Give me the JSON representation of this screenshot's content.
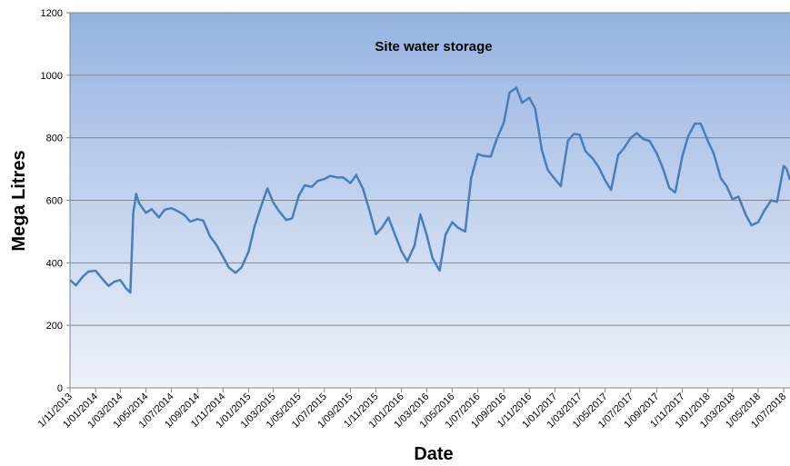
{
  "chart_data": {
    "type": "line",
    "title": "Site water storage",
    "x_label": "Date",
    "y_label": "Mega Litres",
    "color": "#4a7ebb",
    "grid": true,
    "ylim": [
      0,
      1200
    ],
    "yticks": [
      0,
      200,
      400,
      600,
      800,
      1000,
      1200
    ],
    "xlim": [
      "2013-11-01",
      "2018-07-16"
    ],
    "xticks": [
      {
        "value": "2013-11-01",
        "label": "1/11/2013"
      },
      {
        "value": "2014-01-01",
        "label": "1/01/2014"
      },
      {
        "value": "2014-03-01",
        "label": "1/03/2014"
      },
      {
        "value": "2014-05-01",
        "label": "1/05/2014"
      },
      {
        "value": "2014-07-01",
        "label": "1/07/2014"
      },
      {
        "value": "2014-09-01",
        "label": "1/09/2014"
      },
      {
        "value": "2014-11-01",
        "label": "1/11/2014"
      },
      {
        "value": "2015-01-01",
        "label": "1/01/2015"
      },
      {
        "value": "2015-03-01",
        "label": "1/03/2015"
      },
      {
        "value": "2015-05-01",
        "label": "1/05/2015"
      },
      {
        "value": "2015-07-01",
        "label": "1/07/2015"
      },
      {
        "value": "2015-09-01",
        "label": "1/09/2015"
      },
      {
        "value": "2015-11-01",
        "label": "1/11/2015"
      },
      {
        "value": "2016-01-01",
        "label": "1/01/2016"
      },
      {
        "value": "2016-03-01",
        "label": "1/03/2016"
      },
      {
        "value": "2016-05-01",
        "label": "1/05/2016"
      },
      {
        "value": "2016-07-01",
        "label": "1/07/2016"
      },
      {
        "value": "2016-09-01",
        "label": "1/09/2016"
      },
      {
        "value": "2016-11-01",
        "label": "1/11/2016"
      },
      {
        "value": "2017-01-01",
        "label": "1/01/2017"
      },
      {
        "value": "2017-03-01",
        "label": "1/03/2017"
      },
      {
        "value": "2017-05-01",
        "label": "1/05/2017"
      },
      {
        "value": "2017-07-01",
        "label": "1/07/2017"
      },
      {
        "value": "2017-09-01",
        "label": "1/09/2017"
      },
      {
        "value": "2017-11-01",
        "label": "1/11/2017"
      },
      {
        "value": "2018-01-01",
        "label": "1/01/2018"
      },
      {
        "value": "2018-03-01",
        "label": "1/03/2018"
      },
      {
        "value": "2018-05-01",
        "label": "1/05/2018"
      },
      {
        "value": "2018-07-01",
        "label": "1/07/2018"
      }
    ],
    "x": [
      "2013-11-01",
      "2013-11-15",
      "2013-12-01",
      "2013-12-15",
      "2014-01-01",
      "2014-01-15",
      "2014-02-01",
      "2014-02-15",
      "2014-03-01",
      "2014-03-15",
      "2014-03-25",
      "2014-04-01",
      "2014-04-08",
      "2014-04-15",
      "2014-05-01",
      "2014-05-15",
      "2014-06-01",
      "2014-06-15",
      "2014-07-01",
      "2014-07-15",
      "2014-08-01",
      "2014-08-15",
      "2014-09-01",
      "2014-09-15",
      "2014-10-01",
      "2014-10-15",
      "2014-11-01",
      "2014-11-15",
      "2014-12-01",
      "2014-12-15",
      "2015-01-01",
      "2015-01-15",
      "2015-02-01",
      "2015-02-15",
      "2015-03-01",
      "2015-03-15",
      "2015-04-01",
      "2015-04-15",
      "2015-05-01",
      "2015-05-15",
      "2015-06-01",
      "2015-06-15",
      "2015-07-01",
      "2015-07-15",
      "2015-08-01",
      "2015-08-15",
      "2015-09-01",
      "2015-09-15",
      "2015-10-01",
      "2015-10-15",
      "2015-11-01",
      "2015-11-15",
      "2015-12-01",
      "2015-12-15",
      "2016-01-01",
      "2016-01-15",
      "2016-02-01",
      "2016-02-15",
      "2016-03-01",
      "2016-03-15",
      "2016-04-01",
      "2016-04-15",
      "2016-05-01",
      "2016-05-15",
      "2016-06-01",
      "2016-06-15",
      "2016-07-01",
      "2016-07-15",
      "2016-08-01",
      "2016-08-15",
      "2016-09-01",
      "2016-09-15",
      "2016-10-01",
      "2016-10-15",
      "2016-11-01",
      "2016-11-15",
      "2016-12-01",
      "2016-12-15",
      "2017-01-01",
      "2017-01-15",
      "2017-02-01",
      "2017-02-15",
      "2017-03-01",
      "2017-03-15",
      "2017-04-01",
      "2017-04-15",
      "2017-05-01",
      "2017-05-15",
      "2017-06-01",
      "2017-06-15",
      "2017-07-01",
      "2017-07-15",
      "2017-08-01",
      "2017-08-15",
      "2017-09-01",
      "2017-09-15",
      "2017-10-01",
      "2017-10-15",
      "2017-11-01",
      "2017-11-15",
      "2017-12-01",
      "2017-12-15",
      "2018-01-01",
      "2018-01-15",
      "2018-02-01",
      "2018-02-15",
      "2018-03-01",
      "2018-03-15",
      "2018-04-01",
      "2018-04-15",
      "2018-05-01",
      "2018-05-15",
      "2018-06-01",
      "2018-06-15",
      "2018-07-01",
      "2018-07-08",
      "2018-07-16"
    ],
    "values": [
      345,
      328,
      355,
      372,
      375,
      352,
      326,
      340,
      345,
      318,
      305,
      560,
      620,
      590,
      560,
      572,
      545,
      570,
      575,
      566,
      553,
      532,
      540,
      535,
      485,
      460,
      420,
      385,
      368,
      385,
      435,
      515,
      585,
      638,
      593,
      565,
      537,
      542,
      615,
      648,
      643,
      662,
      668,
      678,
      673,
      673,
      655,
      681,
      637,
      575,
      492,
      512,
      545,
      495,
      437,
      405,
      455,
      555,
      490,
      415,
      375,
      490,
      530,
      512,
      500,
      670,
      748,
      742,
      740,
      795,
      848,
      945,
      960,
      912,
      928,
      893,
      760,
      697,
      668,
      645,
      790,
      812,
      810,
      757,
      734,
      707,
      664,
      633,
      745,
      767,
      800,
      815,
      795,
      790,
      750,
      705,
      640,
      625,
      740,
      805,
      845,
      845,
      790,
      750,
      670,
      645,
      603,
      612,
      555,
      520,
      530,
      565,
      600,
      595,
      710,
      700,
      665
    ]
  }
}
